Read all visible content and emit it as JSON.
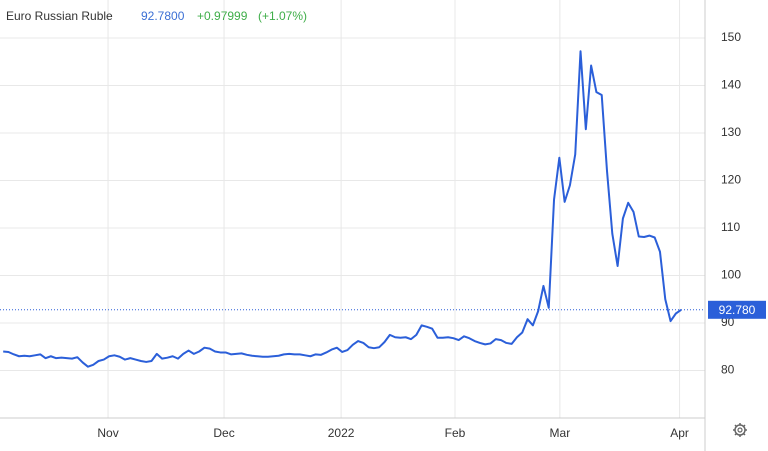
{
  "chart_data": {
    "type": "line",
    "title": "Euro Russian Ruble",
    "price": {
      "value": 92.78,
      "label": "92.7800"
    },
    "change": {
      "value": 0.97999,
      "label": "+0.97999"
    },
    "change_pct": {
      "value": 1.07,
      "label": "(+1.07%)"
    },
    "last_value": {
      "value": 92.78,
      "label": "92.780"
    },
    "series": [
      {
        "color": "#2b5fd9",
        "values": [
          84.0,
          83.9,
          83.4,
          83.0,
          83.1,
          83.0,
          83.2,
          83.4,
          82.6,
          83.0,
          82.6,
          82.7,
          82.6,
          82.5,
          82.8,
          81.7,
          80.8,
          81.2,
          82.0,
          82.3,
          83.0,
          83.2,
          82.9,
          82.3,
          82.6,
          82.3,
          82.0,
          81.8,
          82.0,
          83.5,
          82.5,
          82.7,
          83.0,
          82.5,
          83.5,
          84.2,
          83.5,
          84.0,
          84.8,
          84.6,
          84.0,
          83.8,
          83.8,
          83.4,
          83.5,
          83.6,
          83.3,
          83.1,
          83.0,
          82.9,
          82.9,
          83.0,
          83.1,
          83.4,
          83.5,
          83.4,
          83.4,
          83.2,
          83.0,
          83.4,
          83.3,
          83.8,
          84.4,
          84.8,
          83.9,
          84.3,
          85.4,
          86.2,
          85.8,
          84.9,
          84.7,
          84.9,
          86.0,
          87.5,
          87.0,
          86.9,
          87.0,
          86.6,
          87.5,
          89.5,
          89.2,
          88.8,
          86.9,
          86.9,
          87.0,
          86.8,
          86.4,
          87.2,
          86.8,
          86.2,
          85.8,
          85.5,
          85.7,
          86.6,
          86.4,
          85.8,
          85.6,
          87.0,
          88.0,
          90.8,
          89.5,
          92.5,
          97.8,
          93.2,
          116.0,
          124.8,
          115.5,
          119.0,
          125.5,
          147.2,
          130.8,
          144.2,
          138.6,
          138.0,
          122.0,
          108.8,
          102.0,
          112.0,
          115.3,
          113.4,
          108.2,
          108.1,
          108.4,
          108.0,
          105.0,
          95.0,
          90.4,
          92.0,
          92.78
        ]
      }
    ],
    "xlim": [
      -0.6,
      132.5
    ],
    "xticks": [
      {
        "value": 19.8,
        "label": "Nov"
      },
      {
        "value": 41.7,
        "label": "Dec"
      },
      {
        "value": 63.8,
        "label": "2022"
      },
      {
        "value": 85.3,
        "label": "Feb"
      },
      {
        "value": 105.1,
        "label": "Mar"
      },
      {
        "value": 127.7,
        "label": "Apr"
      }
    ],
    "ylim": [
      70,
      158
    ],
    "yticks": [
      80,
      90,
      100,
      110,
      120,
      130,
      140,
      150
    ],
    "grid": true
  }
}
